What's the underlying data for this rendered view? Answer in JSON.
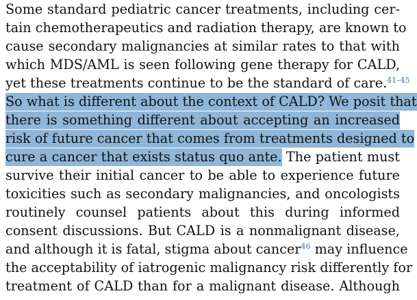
{
  "lines": [
    [
      "Some standard pediatric cancer treatments, including cer-"
    ],
    [
      "tain chemotherapeutics and radiation therapy, are known to"
    ],
    [
      "cause secondary malignancies at similar rates to that with"
    ],
    [
      "which MDS/AML is seen following gene therapy for CALD,"
    ],
    [
      "yet these treatments continue to be the standard of care.",
      "41–45"
    ],
    [
      "So what is different about the context of CALD? We posit that"
    ],
    [
      "there is something different about accepting an increased"
    ],
    [
      "risk of future cancer that comes from treatments designed to"
    ],
    [
      "cure a cancer that exists status quo ante.",
      " The patient must"
    ],
    [
      "survive their initial cancer to be able to experience future"
    ],
    [
      "toxicities such as secondary malignancies, and oncologists"
    ],
    [
      "routinely counsel patients about this during informed"
    ],
    [
      "consent discussions. But CALD is a nonmalignant disease,"
    ],
    [
      "and although it is fatal, stigma about cancer",
      "46",
      " may influence"
    ],
    [
      "the acceptability of iatrogenic malignancy risk differently for"
    ],
    [
      "treatment of CALD than for a malignant disease. Although"
    ]
  ],
  "highlight_color": "#8fb6d8",
  "citation_color": "#3a72b8"
}
